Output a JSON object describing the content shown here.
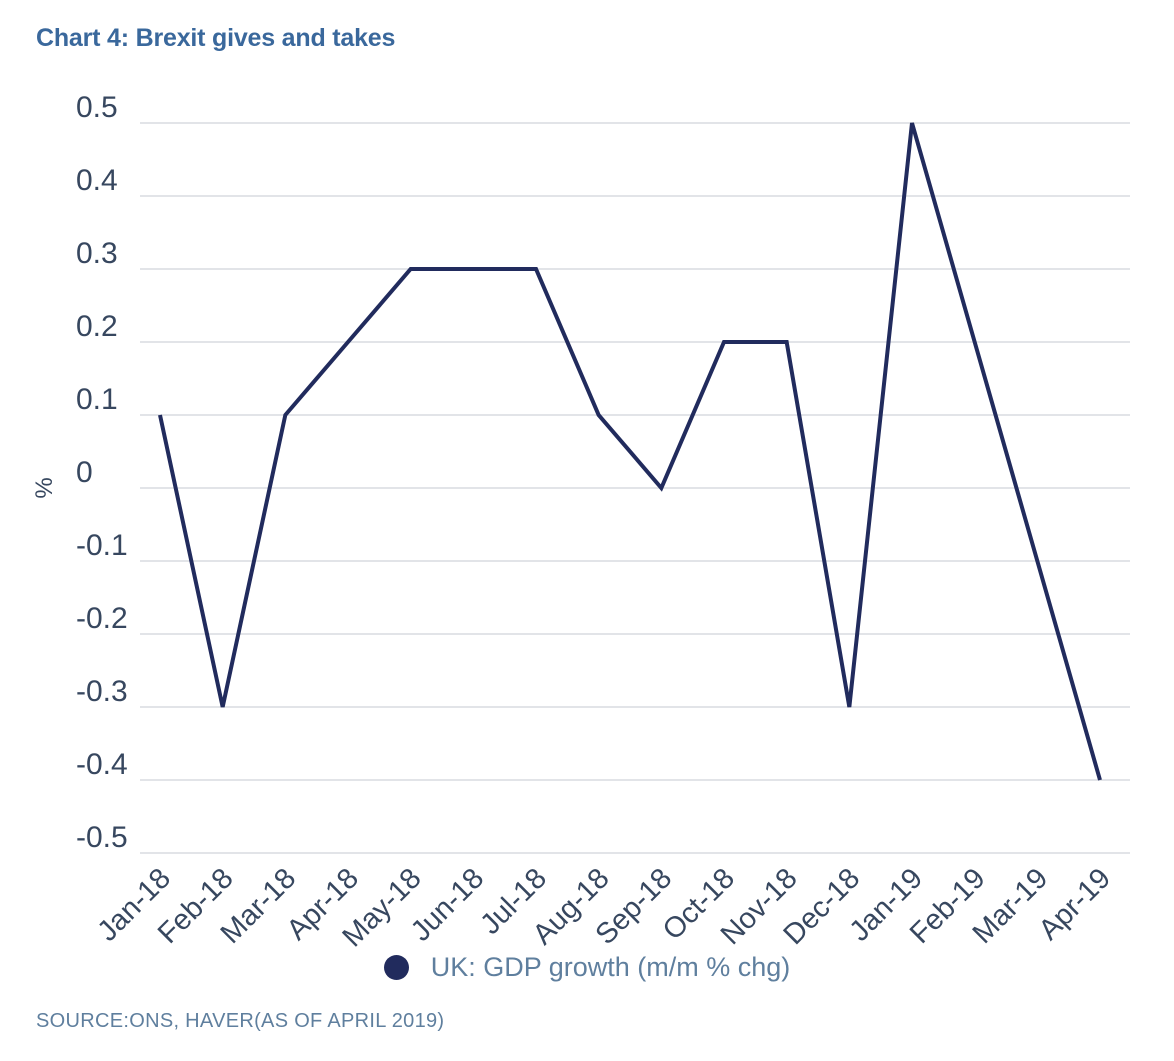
{
  "source_note": "SOURCE:ONS, HAVER(AS OF APRIL 2019)",
  "colors": {
    "title_text": "#3a689c",
    "axis_text": "#37475f",
    "muted_text": "#5f7f9e",
    "gridline": "#d9dce1",
    "series_line": "#212b5d",
    "background": "#ffffff"
  },
  "chart_data": {
    "type": "line",
    "title": "Chart 4: Brexit gives and takes",
    "categories": [
      "Jan-18",
      "Feb-18",
      "Mar-18",
      "Apr-18",
      "May-18",
      "Jun-18",
      "Jul-18",
      "Aug-18",
      "Sep-18",
      "Oct-18",
      "Nov-18",
      "Dec-18",
      "Jan-19",
      "Feb-19",
      "Mar-19",
      "Apr-19"
    ],
    "series": [
      {
        "name": "UK: GDP growth (m/m % chg)",
        "color": "#212b5d",
        "values": [
          0.1,
          -0.3,
          0.1,
          0.2,
          0.3,
          0.3,
          0.3,
          0.1,
          0,
          0.2,
          0.2,
          -0.3,
          0.5,
          0.2,
          -0.1,
          -0.4
        ]
      }
    ],
    "xlabel": "",
    "ylabel": "%",
    "ylim": [
      -0.5,
      0.5
    ],
    "ytick_step": 0.1,
    "grid": true,
    "legend_position": "bottom",
    "x_label_rotation": -45
  }
}
